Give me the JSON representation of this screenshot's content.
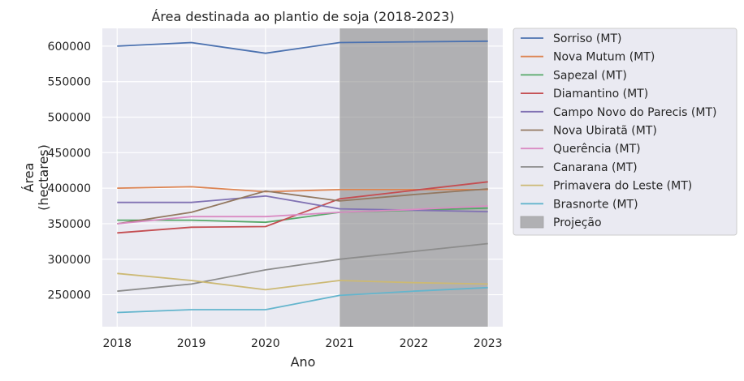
{
  "chart_data": {
    "type": "line",
    "title": "Área destinada ao plantio de soja (2018-2023)",
    "xlabel": "Ano",
    "ylabel_lines": [
      "Área",
      "(hectares)"
    ],
    "x": [
      2018,
      2019,
      2020,
      2021,
      2022,
      2023
    ],
    "xlim": [
      2017.8,
      2023.2
    ],
    "ylim": [
      205000,
      625000
    ],
    "yticks": [
      250000,
      300000,
      350000,
      400000,
      450000,
      500000,
      550000,
      600000
    ],
    "grid": true,
    "background": "#eaeaf2",
    "legend_placement": "outside-right",
    "projection": {
      "label": "Projeção",
      "x_start": 2021,
      "x_end": 2023,
      "color": "#808080"
    },
    "series": [
      {
        "name": "Sorriso (MT)",
        "color": "#4c72b0",
        "values": [
          600000,
          605000,
          590000,
          605000,
          606000,
          607000
        ]
      },
      {
        "name": "Nova Mutum (MT)",
        "color": "#dd8452",
        "values": [
          400000,
          402000,
          395000,
          398000,
          398000,
          398000
        ]
      },
      {
        "name": "Sapezal (MT)",
        "color": "#55a868",
        "values": [
          355000,
          355000,
          352000,
          366000,
          369000,
          372000
        ]
      },
      {
        "name": "Diamantino (MT)",
        "color": "#c44e52",
        "values": [
          337000,
          345000,
          346000,
          385000,
          397000,
          409000
        ]
      },
      {
        "name": "Campo Novo do Parecis (MT)",
        "color": "#8172b3",
        "values": [
          380000,
          380000,
          389000,
          371000,
          369000,
          367000
        ]
      },
      {
        "name": "Nova Ubiratã (MT)",
        "color": "#937860",
        "values": [
          350000,
          366000,
          396000,
          382000,
          391000,
          399000
        ]
      },
      {
        "name": "Querência (MT)",
        "color": "#da8bc3",
        "values": [
          350000,
          360000,
          360000,
          366000,
          370000,
          375000
        ]
      },
      {
        "name": "Canarana (MT)",
        "color": "#8c8c8c",
        "values": [
          255000,
          265000,
          285000,
          300000,
          311000,
          322000
        ]
      },
      {
        "name": "Primavera do Leste (MT)",
        "color": "#ccb974",
        "values": [
          280000,
          270000,
          257000,
          270000,
          267000,
          265000
        ]
      },
      {
        "name": "Brasnorte (MT)",
        "color": "#64b5cd",
        "values": [
          225000,
          229000,
          229000,
          249000,
          255000,
          260000
        ]
      }
    ]
  }
}
